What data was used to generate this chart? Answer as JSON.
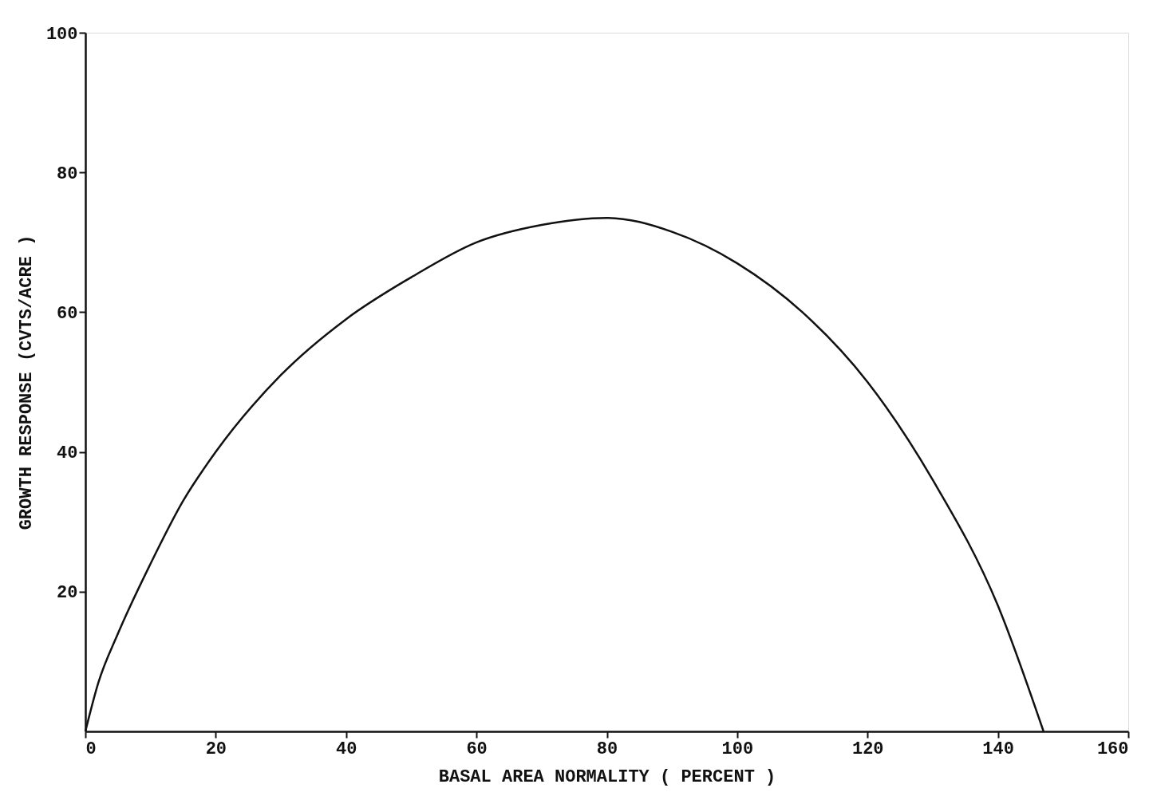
{
  "chart_data": {
    "type": "line",
    "xlabel": "BASAL AREA NORMALITY ( PERCENT )",
    "ylabel": "GROWTH RESPONSE  (CVTS/ACRE )",
    "series": [
      {
        "color": "#111111",
        "x": [
          0,
          2,
          5,
          10,
          15,
          20,
          30,
          40,
          50,
          60,
          70,
          80,
          90,
          100,
          110,
          120,
          130,
          140,
          147
        ],
        "values": [
          0,
          7,
          14,
          24,
          33,
          40,
          51,
          59,
          65,
          70,
          72.5,
          73.5,
          71.5,
          67,
          60,
          50,
          36,
          18,
          0
        ]
      }
    ],
    "xlim": [
      0,
      160
    ],
    "xticks": [
      0,
      20,
      40,
      60,
      80,
      100,
      120,
      140,
      160
    ],
    "ylim": [
      0,
      100
    ],
    "yticks": [
      20,
      40,
      60,
      80,
      100
    ],
    "grid": false,
    "marker": "none",
    "line_style": "solid"
  }
}
